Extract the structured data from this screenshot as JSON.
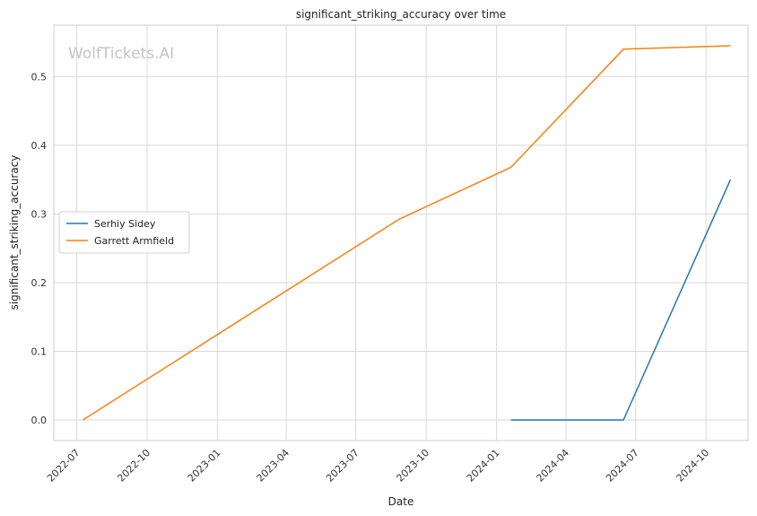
{
  "chart_data": {
    "type": "line",
    "title": "significant_striking_accuracy over time",
    "xlabel": "Date",
    "ylabel": "significant_striking_accuracy",
    "watermark": "WolfTickets.AI",
    "x_ticks": [
      "2022-07",
      "2022-10",
      "2023-01",
      "2023-04",
      "2023-07",
      "2023-10",
      "2024-01",
      "2024-04",
      "2024-07",
      "2024-10"
    ],
    "y_ticks": [
      "0.0",
      "0.1",
      "0.2",
      "0.3",
      "0.4",
      "0.5"
    ],
    "xlim": [
      "2022-06-01",
      "2024-11-25"
    ],
    "ylim": [
      -0.03,
      0.575
    ],
    "grid": true,
    "legend_position": "center-left",
    "series": [
      {
        "name": "Serhiy Sidey",
        "color": "#1f77b4",
        "x": [
          "2024-01-20",
          "2024-06-15",
          "2024-11-02"
        ],
        "y": [
          0.0,
          0.0,
          0.35
        ]
      },
      {
        "name": "Garrett Armfield",
        "color": "#ff7f0e",
        "x": [
          "2022-07-09",
          "2023-08-26",
          "2024-01-20",
          "2024-06-15",
          "2024-11-02"
        ],
        "y": [
          0.0,
          0.292,
          0.368,
          0.54,
          0.545
        ]
      }
    ]
  }
}
